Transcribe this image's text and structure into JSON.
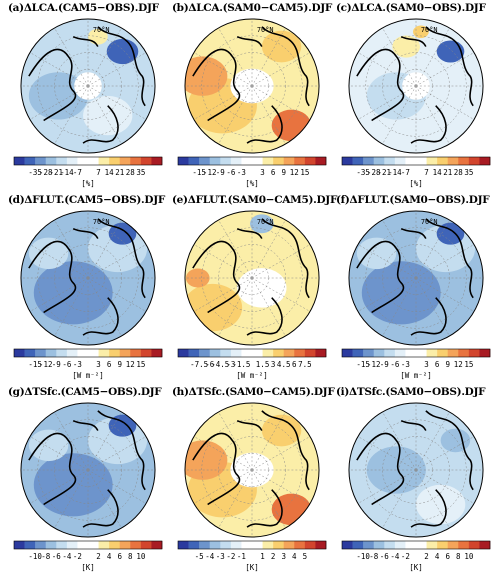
{
  "panels": [
    {
      "id": "a",
      "title": "(a)ΔLCA.(CAM5−OBS).DJF",
      "palette": "diverge14",
      "fill": "cool_mixed",
      "unit": "[%]",
      "ticks": [
        "-35",
        "-28",
        "-21",
        "-14",
        "-7",
        "7",
        "14",
        "21",
        "28",
        "35"
      ],
      "show_lat": true,
      "hole": true
    },
    {
      "id": "b",
      "title": "(b)ΔLCA.(SAM0−CAM5).DJF",
      "palette": "diverge14",
      "fill": "warm",
      "unit": "[%]",
      "ticks": [
        "-15",
        "-12",
        "-9",
        "-6",
        "-3",
        "3",
        "6",
        "9",
        "12",
        "15"
      ],
      "show_lat": true,
      "hole": false
    },
    {
      "id": "c",
      "title": "(c)ΔLCA.(SAM0−OBS).DJF",
      "palette": "diverge14",
      "fill": "light_mixed",
      "unit": "[%]",
      "ticks": [
        "-35",
        "-28",
        "-21",
        "-14",
        "-7",
        "7",
        "14",
        "21",
        "28",
        "35"
      ],
      "show_lat": true,
      "hole": true
    },
    {
      "id": "d",
      "title": "(d)ΔFLUT.(CAM5−OBS).DJF",
      "palette": "diverge14",
      "fill": "cool",
      "unit": "[W m⁻²]",
      "ticks": [
        "-15",
        "-12",
        "-9",
        "-6",
        "-3",
        "3",
        "6",
        "9",
        "12",
        "15"
      ],
      "show_lat": true,
      "hole": false
    },
    {
      "id": "e",
      "title": "(e)ΔFLUT.(SAM0−CAM5).DJF",
      "palette": "diverge14",
      "fill": "warm_light",
      "unit": "[W m⁻²]",
      "ticks": [
        "-7.5",
        "-6",
        "-4.5",
        "-3",
        "-1.5",
        "1.5",
        "3",
        "4.5",
        "6",
        "7.5"
      ],
      "show_lat": true,
      "hole": false
    },
    {
      "id": "f",
      "title": "(f)ΔFLUT.(SAM0−OBS).DJF",
      "palette": "diverge14",
      "fill": "cool",
      "unit": "[W m⁻²]",
      "ticks": [
        "-15",
        "-12",
        "-9",
        "-6",
        "-3",
        "3",
        "6",
        "9",
        "12",
        "15"
      ],
      "show_lat": true,
      "hole": false
    },
    {
      "id": "g",
      "title": "(g)ΔTSfc.(CAM5−OBS).DJF",
      "palette": "diverge12",
      "fill": "cool",
      "unit": "[K]",
      "ticks": [
        "-10",
        "-8",
        "-6",
        "-4",
        "-2",
        "2",
        "4",
        "6",
        "8",
        "10"
      ],
      "show_lat": false,
      "hole": false
    },
    {
      "id": "h",
      "title": "(h)ΔTSfc.(SAM0−CAM5).DJF",
      "palette": "diverge12",
      "fill": "warm",
      "unit": "[K]",
      "ticks": [
        "-5",
        "-4",
        "-3",
        "-2",
        "-1",
        "1",
        "2",
        "3",
        "4",
        "5"
      ],
      "show_lat": false,
      "hole": false
    },
    {
      "id": "i",
      "title": "(i)ΔTSfc.(SAM0−OBS).DJF",
      "palette": "diverge12",
      "fill": "light_cool",
      "unit": "[K]",
      "ticks": [
        "-10",
        "-8",
        "-6",
        "-4",
        "-2",
        "2",
        "4",
        "6",
        "8",
        "10"
      ],
      "show_lat": false,
      "hole": false
    }
  ],
  "lat_label": "70°N",
  "colors": {
    "diverge": [
      "#2b3a9e",
      "#3f64b8",
      "#6d94cc",
      "#9cc0e0",
      "#c4ddef",
      "#e4f0f8",
      "#ffffff",
      "#ffffff",
      "#fbeea8",
      "#f9cf6e",
      "#f4a45a",
      "#e8733f",
      "#d2452d",
      "#a81b23"
    ]
  }
}
